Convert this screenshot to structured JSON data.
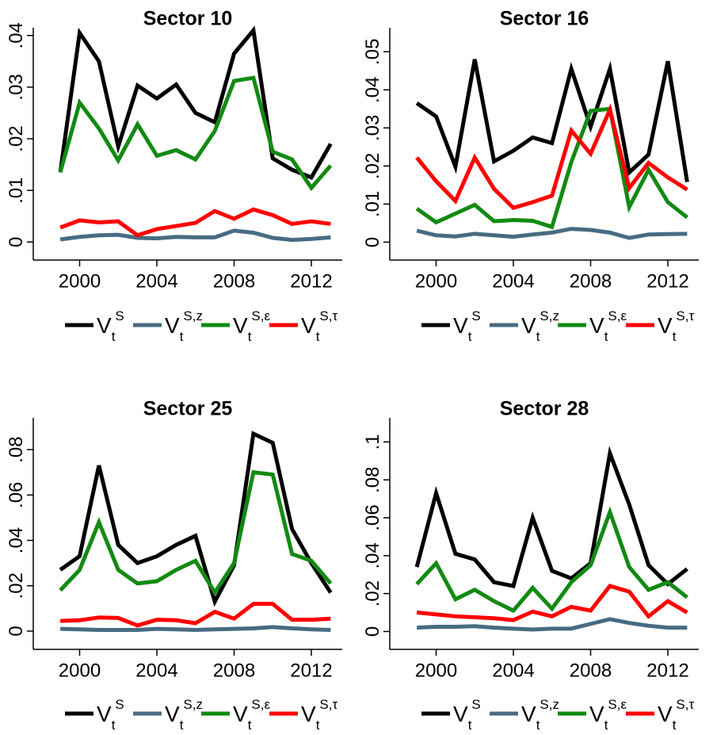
{
  "chart_data": [
    {
      "type": "line",
      "title": "Sector 10",
      "x": [
        1999,
        2000,
        2001,
        2002,
        2003,
        2004,
        2005,
        2006,
        2007,
        2008,
        2009,
        2010,
        2011,
        2012,
        2013
      ],
      "xlim": [
        1997.6,
        2013.6
      ],
      "xticks": [
        2000,
        2004,
        2008,
        2012
      ],
      "ylim": [
        -0.0015,
        0.0415
      ],
      "yticks": [
        0,
        {
          "value": 0.01,
          "label": ".01"
        },
        {
          "value": 0.02,
          "label": ".02"
        },
        {
          "value": 0.03,
          "label": ".03"
        },
        {
          "value": 0.04,
          "label": ".04"
        }
      ],
      "series": [
        {
          "name": {
            "base": "V",
            "sub": "t",
            "sup": "S"
          },
          "color": "#000000",
          "values": [
            0.0135,
            0.0405,
            0.035,
            0.0185,
            0.0303,
            0.0278,
            0.0305,
            0.025,
            0.0232,
            0.0365,
            0.041,
            0.0162,
            0.014,
            0.0125,
            0.019
          ]
        },
        {
          "name": {
            "base": "V",
            "sub": "t",
            "sup": "S,z"
          },
          "color": "#476b83",
          "values": [
            0.0005,
            0.001,
            0.0013,
            0.0014,
            0.0008,
            0.0007,
            0.001,
            0.0009,
            0.0009,
            0.0022,
            0.0018,
            0.0008,
            0.0004,
            0.0006,
            0.0009
          ]
        },
        {
          "name": {
            "base": "V",
            "sub": "t",
            "sup": "S,ε"
          },
          "color": "#128a12",
          "values": [
            0.0135,
            0.027,
            0.022,
            0.0158,
            0.0228,
            0.0167,
            0.0178,
            0.016,
            0.0215,
            0.0312,
            0.0318,
            0.0175,
            0.016,
            0.0105,
            0.0148
          ]
        },
        {
          "name": {
            "base": "V",
            "sub": "t",
            "sup": "S,τ"
          },
          "color": "#ff0000",
          "values": [
            0.0028,
            0.0042,
            0.0038,
            0.004,
            0.0013,
            0.0025,
            0.0031,
            0.0037,
            0.006,
            0.0045,
            0.0063,
            0.0052,
            0.0035,
            0.004,
            0.0035
          ]
        }
      ]
    },
    {
      "type": "line",
      "title": "Sector 16",
      "x": [
        1999,
        2000,
        2001,
        2002,
        2003,
        2004,
        2005,
        2006,
        2007,
        2008,
        2009,
        2010,
        2011,
        2012,
        2013
      ],
      "xlim": [
        1997.6,
        2013.6
      ],
      "xticks": [
        2000,
        2004,
        2008,
        2012
      ],
      "ylim": [
        -0.002,
        0.0563
      ],
      "yticks": [
        0,
        {
          "value": 0.01,
          "label": ".01"
        },
        {
          "value": 0.02,
          "label": ".02"
        },
        {
          "value": 0.03,
          "label": ".03"
        },
        {
          "value": 0.04,
          "label": ".04"
        },
        {
          "value": 0.05,
          "label": ".05"
        }
      ],
      "series": [
        {
          "name": {
            "base": "V",
            "sub": "t",
            "sup": "S"
          },
          "color": "#000000",
          "values": [
            0.0365,
            0.033,
            0.0198,
            0.048,
            0.0212,
            0.024,
            0.0275,
            0.026,
            0.0455,
            0.0303,
            0.0455,
            0.0183,
            0.023,
            0.0475,
            0.0158
          ]
        },
        {
          "name": {
            "base": "V",
            "sub": "t",
            "sup": "S,z"
          },
          "color": "#476b83",
          "values": [
            0.003,
            0.0018,
            0.0015,
            0.0022,
            0.0018,
            0.0014,
            0.002,
            0.0025,
            0.0035,
            0.0032,
            0.0025,
            0.0011,
            0.002,
            0.0021,
            0.0022
          ]
        },
        {
          "name": {
            "base": "V",
            "sub": "t",
            "sup": "S,ε"
          },
          "color": "#128a12",
          "values": [
            0.0088,
            0.0052,
            0.0075,
            0.0098,
            0.0055,
            0.0058,
            0.0056,
            0.004,
            0.021,
            0.0345,
            0.035,
            0.0092,
            0.019,
            0.0105,
            0.0065
          ]
        },
        {
          "name": {
            "base": "V",
            "sub": "t",
            "sup": "S,τ"
          },
          "color": "#ff0000",
          "values": [
            0.0222,
            0.016,
            0.0108,
            0.0222,
            0.014,
            0.009,
            0.0105,
            0.0122,
            0.0293,
            0.0232,
            0.0348,
            0.0142,
            0.0208,
            0.017,
            0.0138
          ]
        }
      ]
    },
    {
      "type": "line",
      "title": "Sector 25",
      "x": [
        1999,
        2000,
        2001,
        2002,
        2003,
        2004,
        2005,
        2006,
        2007,
        2008,
        2009,
        2010,
        2011,
        2012,
        2013
      ],
      "xlim": [
        1997.6,
        2013.6
      ],
      "xticks": [
        2000,
        2004,
        2008,
        2012
      ],
      "ylim": [
        -0.0035,
        0.094
      ],
      "yticks": [
        0,
        {
          "value": 0.02,
          "label": ".02"
        },
        {
          "value": 0.04,
          "label": ".04"
        },
        {
          "value": 0.06,
          "label": ".06"
        },
        {
          "value": 0.08,
          "label": ".08"
        }
      ],
      "series": [
        {
          "name": {
            "base": "V",
            "sub": "t",
            "sup": "S"
          },
          "color": "#000000",
          "values": [
            0.027,
            0.033,
            0.073,
            0.038,
            0.03,
            0.033,
            0.038,
            0.042,
            0.013,
            0.029,
            0.087,
            0.083,
            0.045,
            0.03,
            0.017
          ]
        },
        {
          "name": {
            "base": "V",
            "sub": "t",
            "sup": "S,z"
          },
          "color": "#476b83",
          "values": [
            0.001,
            0.0008,
            0.0005,
            0.0005,
            0.0005,
            0.001,
            0.0008,
            0.0005,
            0.0008,
            0.001,
            0.0012,
            0.0018,
            0.0012,
            0.0008,
            0.0005
          ]
        },
        {
          "name": {
            "base": "V",
            "sub": "t",
            "sup": "S,ε"
          },
          "color": "#128a12",
          "values": [
            0.018,
            0.027,
            0.048,
            0.027,
            0.021,
            0.022,
            0.027,
            0.031,
            0.017,
            0.03,
            0.07,
            0.069,
            0.034,
            0.031,
            0.021
          ]
        },
        {
          "name": {
            "base": "V",
            "sub": "t",
            "sup": "S,τ"
          },
          "color": "#ff0000",
          "values": [
            0.0045,
            0.0048,
            0.006,
            0.0058,
            0.0025,
            0.005,
            0.0048,
            0.0035,
            0.0085,
            0.0055,
            0.012,
            0.012,
            0.005,
            0.005,
            0.0055
          ]
        }
      ]
    },
    {
      "type": "line",
      "title": "Sector 28",
      "x": [
        1999,
        2000,
        2001,
        2002,
        2003,
        2004,
        2005,
        2006,
        2007,
        2008,
        2009,
        2010,
        2011,
        2012,
        2013
      ],
      "xlim": [
        1997.6,
        2013.6
      ],
      "xticks": [
        2000,
        2004,
        2008,
        2012
      ],
      "ylim": [
        -0.004,
        0.1127
      ],
      "yticks": [
        0,
        {
          "value": 0.02,
          "label": ".02"
        },
        {
          "value": 0.04,
          "label": ".04"
        },
        {
          "value": 0.06,
          "label": ".06"
        },
        {
          "value": 0.08,
          "label": ".08"
        },
        {
          "value": 0.1,
          "label": ".1"
        }
      ],
      "series": [
        {
          "name": {
            "base": "V",
            "sub": "t",
            "sup": "S"
          },
          "color": "#000000",
          "values": [
            0.034,
            0.073,
            0.041,
            0.038,
            0.026,
            0.024,
            0.06,
            0.032,
            0.028,
            0.036,
            0.094,
            0.067,
            0.035,
            0.025,
            0.033
          ]
        },
        {
          "name": {
            "base": "V",
            "sub": "t",
            "sup": "S,z"
          },
          "color": "#476b83",
          "values": [
            0.002,
            0.0025,
            0.0025,
            0.0028,
            0.002,
            0.0015,
            0.001,
            0.0015,
            0.0015,
            0.004,
            0.0065,
            0.0045,
            0.003,
            0.002,
            0.002
          ]
        },
        {
          "name": {
            "base": "V",
            "sub": "t",
            "sup": "S,ε"
          },
          "color": "#128a12",
          "values": [
            0.025,
            0.036,
            0.017,
            0.022,
            0.016,
            0.011,
            0.023,
            0.012,
            0.026,
            0.035,
            0.063,
            0.034,
            0.022,
            0.026,
            0.018
          ]
        },
        {
          "name": {
            "base": "V",
            "sub": "t",
            "sup": "S,τ"
          },
          "color": "#ff0000",
          "values": [
            0.01,
            0.009,
            0.008,
            0.0075,
            0.007,
            0.006,
            0.0105,
            0.008,
            0.013,
            0.011,
            0.024,
            0.021,
            0.008,
            0.016,
            0.01
          ]
        }
      ]
    }
  ]
}
